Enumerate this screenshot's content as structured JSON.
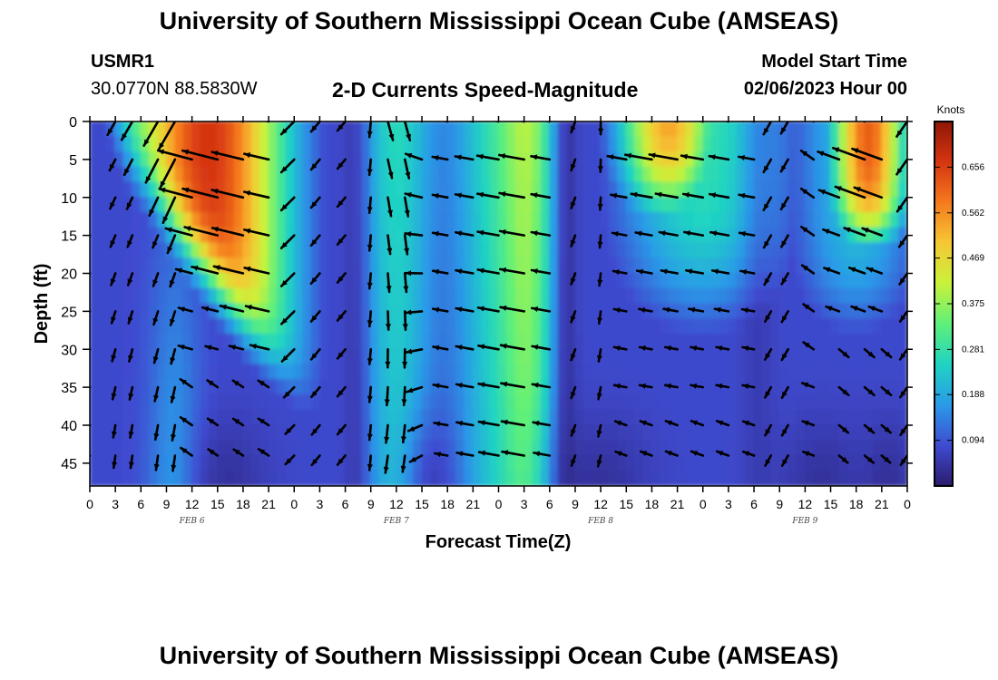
{
  "header": {
    "title": "University of Southern Mississippi Ocean Cube (AMSEAS)",
    "station_id": "USMR1",
    "station_coords": "30.0770N  88.5830W",
    "plot_title": "2-D Currents Speed-Magnitude",
    "model_start_label": "Model Start Time",
    "model_start_value": "02/06/2023 Hour 00"
  },
  "footer": {
    "title": "University of Southern Mississippi Ocean Cube (AMSEAS)"
  },
  "colorbar": {
    "unit": "Knots",
    "ticks": [
      "0.656",
      "0.562",
      "0.469",
      "0.375",
      "0.281",
      "0.188",
      "0.094"
    ],
    "tick_values": [
      0.656,
      0.562,
      0.469,
      0.375,
      0.281,
      0.188,
      0.094
    ],
    "range": [
      0.0,
      0.75
    ],
    "colors": [
      "#2b1b6e",
      "#3f4bd0",
      "#2a9ae8",
      "#1fd3c3",
      "#5ef07a",
      "#c9f23a",
      "#f6c834",
      "#f57a1e",
      "#d63511",
      "#8e1706"
    ]
  },
  "chart_data": {
    "type": "heatmap",
    "title": "2-D Currents Speed-Magnitude",
    "xlabel": "Forecast Time(Z)",
    "ylabel": "Depth (ft)",
    "x_tick_labels": [
      "0",
      "3",
      "6",
      "9",
      "12",
      "15",
      "18",
      "21",
      "0",
      "3",
      "6",
      "9",
      "12",
      "15",
      "18",
      "21",
      "0",
      "3",
      "6",
      "9",
      "12",
      "15",
      "18",
      "21",
      "0",
      "3",
      "6",
      "9",
      "12",
      "15",
      "18",
      "21",
      "0"
    ],
    "x_range_hours": [
      0,
      96
    ],
    "date_labels": [
      {
        "text": "FEB 6",
        "hour": 12
      },
      {
        "text": "FEB 7",
        "hour": 36
      },
      {
        "text": "FEB 8",
        "hour": 60
      },
      {
        "text": "FEB 9",
        "hour": 84
      }
    ],
    "y_tick_labels": [
      "0",
      "5",
      "10",
      "15",
      "20",
      "25",
      "30",
      "35",
      "40",
      "45"
    ],
    "y_range_ft": [
      0,
      48
    ],
    "value_unit": "knots",
    "vector_depths_ft": [
      0,
      5,
      10,
      15,
      20,
      25,
      30,
      35,
      40,
      44
    ],
    "vector_hours": [
      0,
      3,
      5,
      8,
      10,
      12,
      15,
      18,
      21,
      24,
      27,
      30,
      33,
      35,
      37,
      39,
      42,
      45,
      48,
      51,
      54,
      57,
      60,
      63,
      66,
      69,
      72,
      75,
      78,
      80,
      82,
      85,
      88,
      91,
      93,
      96
    ],
    "pattern_summary": "Strong currents (~0.6-0.7 kt) near surface on Feb 6 hours 3-24, weaker bands near hours 30, 42, 56, high near surface around hours 63-72 and 87-96; weakest near bottom (~0.05 kt)."
  }
}
